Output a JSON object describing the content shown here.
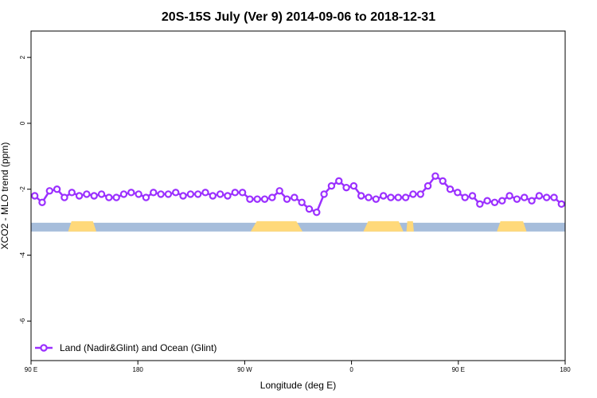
{
  "chart_data": {
    "type": "line",
    "title": "20S-15S July (Ver 9)   2014-09-06 to 2018-12-31",
    "xlabel": "Longitude (deg E)",
    "ylabel": "XCO2 - MLO trend (ppm)",
    "xlim": [
      90,
      450
    ],
    "ylim": [
      -7.2,
      2.8
    ],
    "x_ticks": [
      {
        "value": 90,
        "label": "90 E"
      },
      {
        "value": 162,
        "label": "180"
      },
      {
        "value": 234,
        "label": "90 W"
      },
      {
        "value": 306,
        "label": "0"
      },
      {
        "value": 378,
        "label": "90 E"
      },
      {
        "value": 450,
        "label": "180"
      }
    ],
    "y_ticks": [
      {
        "value": 2,
        "label": "2"
      },
      {
        "value": 0,
        "label": "0"
      },
      {
        "value": -2,
        "label": "-2"
      },
      {
        "value": -4,
        "label": "-4"
      },
      {
        "value": -6,
        "label": "-6"
      }
    ],
    "series": [
      {
        "name": "Land (Nadir&Glint) and Ocean (Glint)",
        "color": "#9b30ff",
        "x": [
          92.5,
          97.5,
          102.5,
          107.5,
          112.5,
          117.5,
          122.5,
          127.5,
          132.5,
          137.5,
          142.5,
          147.5,
          152.5,
          157.5,
          162.5,
          167.5,
          172.5,
          177.5,
          182.5,
          187.5,
          192.5,
          197.5,
          202.5,
          207.5,
          212.5,
          217.5,
          222.5,
          227.5,
          232.5,
          237.5,
          242.5,
          247.5,
          252.5,
          257.5,
          262.5,
          267.5,
          272.5,
          277.5,
          282.5,
          287.5,
          292.5,
          297.5,
          302.5,
          307.5,
          312.5,
          317.5,
          322.5,
          327.5,
          332.5,
          337.5,
          342.5,
          347.5,
          352.5,
          357.5,
          362.5,
          367.5,
          372.5,
          377.5,
          382.5,
          387.5,
          392.5,
          397.5,
          402.5,
          407.5,
          412.5,
          417.5,
          422.5,
          427.5,
          432.5,
          437.5,
          442.5,
          447.5
        ],
        "values": [
          -2.2,
          -2.4,
          -2.05,
          -2.0,
          -2.25,
          -2.1,
          -2.2,
          -2.15,
          -2.2,
          -2.15,
          -2.25,
          -2.25,
          -2.15,
          -2.1,
          -2.15,
          -2.25,
          -2.1,
          -2.15,
          -2.15,
          -2.1,
          -2.2,
          -2.15,
          -2.15,
          -2.1,
          -2.2,
          -2.15,
          -2.2,
          -2.1,
          -2.1,
          -2.3,
          -2.3,
          -2.3,
          -2.25,
          -2.05,
          -2.3,
          -2.25,
          -2.4,
          -2.6,
          -2.7,
          -2.15,
          -1.9,
          -1.75,
          -1.95,
          -1.9,
          -2.2,
          -2.25,
          -2.3,
          -2.2,
          -2.25,
          -2.25,
          -2.25,
          -2.15,
          -2.15,
          -1.9,
          -1.6,
          -1.75,
          -2.0,
          -2.1,
          -2.25,
          -2.2,
          -2.45,
          -2.35,
          -2.4,
          -2.35,
          -2.2,
          -2.3,
          -2.25,
          -2.35,
          -2.2,
          -2.25,
          -2.25,
          -2.45
        ]
      }
    ],
    "surface_bar": {
      "level": -3.15,
      "ocean_color": "#a6bddb",
      "land_color": "#ffd97a",
      "land_segments": [
        [
          115,
          134
        ],
        [
          238,
          273
        ],
        [
          314,
          341
        ],
        [
          343,
          348
        ],
        [
          404,
          424
        ]
      ]
    },
    "legend": {
      "position": "bottom-left",
      "label": "Land (Nadir&Glint) and Ocean (Glint)"
    },
    "grid": false
  }
}
